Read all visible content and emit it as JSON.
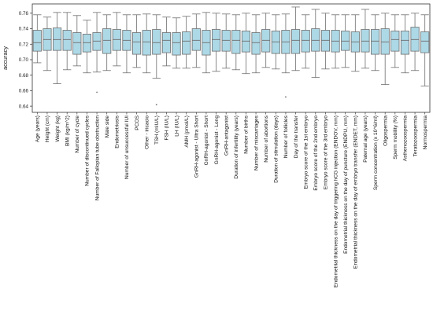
{
  "chart_data": {
    "type": "box",
    "ylabel": "accuracy",
    "xlabel": "",
    "ylim": [
      0.632,
      0.772
    ],
    "yticks": [
      0.64,
      0.66,
      0.68,
      0.7,
      0.72,
      0.74,
      0.76
    ],
    "ytick_labels": [
      "0.64",
      "0.66",
      "0.68",
      "0.70",
      "0.72",
      "0.74",
      "0.76"
    ],
    "grid": false,
    "box_color": "#add8e6",
    "line_color": "#6f6f6f",
    "categories": [
      "Age (years)",
      "Height (cm)",
      "Weight (kg)",
      "BMI (kg/m^2)",
      "Number of cycle",
      "Number of discontinued cycles",
      "Number of Fallopian tube obstruction",
      "Male side",
      "Endometriosis",
      "Number of unsuccessful IUI",
      "PCOS",
      "Other - iricacio",
      "TSH (mIU/L)",
      "FSH (IU/L)",
      "LH (IU/L)",
      "AMH (pmol/L)",
      "GnRH-agonist - Ultra Short",
      "GnRH-agonist - Short",
      "GnRH-agonist - Long",
      "GnRH-antagonist",
      "Duration of infertility (years)",
      "Number of births",
      "Number of miscarriages",
      "Number of abortions",
      "Duration of stimulation (days)",
      "Number of follicles",
      "Day of the transfer",
      "Embryo score of the 1st embryo",
      "Embryo score of the 2nd embryo",
      "Embryo score of the 3rd embryo",
      "Endometrial thickness on the day of triggering hCG injection (ENDOV, mm)",
      "Endometrial thickness on the day of puncture (ENDPU, mm)",
      "Endometrial thickness on the day of embryo transfer (ENDET, mm)",
      "Paternal age (years)",
      "Sperm concentration (x 10^6/ml)",
      "Oligospermia",
      "Sperm mobility (%)",
      "Asthenozoospermia",
      "Teratozoospermia",
      "Normospermia"
    ],
    "boxes": [
      {
        "min": 0.696,
        "q1": 0.711,
        "median": 0.722,
        "q3": 0.738,
        "max": 0.758,
        "outliers": []
      },
      {
        "min": 0.686,
        "q1": 0.712,
        "median": 0.726,
        "q3": 0.74,
        "max": 0.755,
        "outliers": []
      },
      {
        "min": 0.669,
        "q1": 0.712,
        "median": 0.726,
        "q3": 0.741,
        "max": 0.761,
        "outliers": []
      },
      {
        "min": 0.687,
        "q1": 0.712,
        "median": 0.726,
        "q3": 0.738,
        "max": 0.761,
        "outliers": []
      },
      {
        "min": 0.692,
        "q1": 0.707,
        "median": 0.722,
        "q3": 0.735,
        "max": 0.757,
        "outliers": []
      },
      {
        "min": 0.683,
        "q1": 0.71,
        "median": 0.722,
        "q3": 0.733,
        "max": 0.751,
        "outliers": []
      },
      {
        "min": 0.684,
        "q1": 0.712,
        "median": 0.724,
        "q3": 0.735,
        "max": 0.761,
        "outliers": [
          0.658
        ]
      },
      {
        "min": 0.686,
        "q1": 0.708,
        "median": 0.725,
        "q3": 0.74,
        "max": 0.758,
        "outliers": []
      },
      {
        "min": 0.692,
        "q1": 0.712,
        "median": 0.726,
        "q3": 0.739,
        "max": 0.761,
        "outliers": []
      },
      {
        "min": 0.683,
        "q1": 0.712,
        "median": 0.725,
        "q3": 0.738,
        "max": 0.758,
        "outliers": []
      },
      {
        "min": 0.69,
        "q1": 0.707,
        "median": 0.723,
        "q3": 0.735,
        "max": 0.758,
        "outliers": []
      },
      {
        "min": 0.683,
        "q1": 0.706,
        "median": 0.723,
        "q3": 0.738,
        "max": 0.759,
        "outliers": []
      },
      {
        "min": 0.676,
        "q1": 0.707,
        "median": 0.722,
        "q3": 0.739,
        "max": 0.758,
        "outliers": [
          0.642
        ]
      },
      {
        "min": 0.692,
        "q1": 0.709,
        "median": 0.725,
        "q3": 0.735,
        "max": 0.755,
        "outliers": []
      },
      {
        "min": 0.689,
        "q1": 0.706,
        "median": 0.722,
        "q3": 0.735,
        "max": 0.754,
        "outliers": []
      },
      {
        "min": 0.689,
        "q1": 0.707,
        "median": 0.724,
        "q3": 0.736,
        "max": 0.756,
        "outliers": []
      },
      {
        "min": 0.69,
        "q1": 0.712,
        "median": 0.725,
        "q3": 0.74,
        "max": 0.759,
        "outliers": []
      },
      {
        "min": 0.683,
        "q1": 0.706,
        "median": 0.722,
        "q3": 0.738,
        "max": 0.761,
        "outliers": []
      },
      {
        "min": 0.685,
        "q1": 0.711,
        "median": 0.726,
        "q3": 0.739,
        "max": 0.76,
        "outliers": []
      },
      {
        "min": 0.689,
        "q1": 0.711,
        "median": 0.725,
        "q3": 0.738,
        "max": 0.759,
        "outliers": []
      },
      {
        "min": 0.687,
        "q1": 0.708,
        "median": 0.725,
        "q3": 0.738,
        "max": 0.758,
        "outliers": []
      },
      {
        "min": 0.682,
        "q1": 0.71,
        "median": 0.724,
        "q3": 0.737,
        "max": 0.76,
        "outliers": []
      },
      {
        "min": 0.683,
        "q1": 0.707,
        "median": 0.722,
        "q3": 0.735,
        "max": 0.758,
        "outliers": []
      },
      {
        "min": 0.69,
        "q1": 0.71,
        "median": 0.725,
        "q3": 0.739,
        "max": 0.76,
        "outliers": []
      },
      {
        "min": 0.688,
        "q1": 0.708,
        "median": 0.723,
        "q3": 0.737,
        "max": 0.758,
        "outliers": []
      },
      {
        "min": 0.683,
        "q1": 0.708,
        "median": 0.723,
        "q3": 0.738,
        "max": 0.759,
        "outliers": [
          0.652
        ]
      },
      {
        "min": 0.686,
        "q1": 0.708,
        "median": 0.725,
        "q3": 0.739,
        "max": 0.768,
        "outliers": []
      },
      {
        "min": 0.689,
        "q1": 0.71,
        "median": 0.725,
        "q3": 0.738,
        "max": 0.758,
        "outliers": []
      },
      {
        "min": 0.677,
        "q1": 0.711,
        "median": 0.725,
        "q3": 0.74,
        "max": 0.765,
        "outliers": []
      },
      {
        "min": 0.688,
        "q1": 0.711,
        "median": 0.725,
        "q3": 0.738,
        "max": 0.76,
        "outliers": []
      },
      {
        "min": 0.689,
        "q1": 0.71,
        "median": 0.724,
        "q3": 0.738,
        "max": 0.758,
        "outliers": []
      },
      {
        "min": 0.69,
        "q1": 0.712,
        "median": 0.724,
        "q3": 0.737,
        "max": 0.758,
        "outliers": []
      },
      {
        "min": 0.685,
        "q1": 0.71,
        "median": 0.723,
        "q3": 0.736,
        "max": 0.758,
        "outliers": []
      },
      {
        "min": 0.689,
        "q1": 0.71,
        "median": 0.724,
        "q3": 0.739,
        "max": 0.765,
        "outliers": []
      },
      {
        "min": 0.686,
        "q1": 0.707,
        "median": 0.724,
        "q3": 0.739,
        "max": 0.758,
        "outliers": []
      },
      {
        "min": 0.668,
        "q1": 0.707,
        "median": 0.723,
        "q3": 0.74,
        "max": 0.76,
        "outliers": []
      },
      {
        "min": 0.69,
        "q1": 0.711,
        "median": 0.726,
        "q3": 0.737,
        "max": 0.758,
        "outliers": []
      },
      {
        "min": 0.683,
        "q1": 0.707,
        "median": 0.725,
        "q3": 0.737,
        "max": 0.758,
        "outliers": []
      },
      {
        "min": 0.686,
        "q1": 0.711,
        "median": 0.726,
        "q3": 0.742,
        "max": 0.76,
        "outliers": []
      },
      {
        "min": 0.666,
        "q1": 0.709,
        "median": 0.724,
        "q3": 0.736,
        "max": 0.758,
        "outliers": []
      }
    ]
  }
}
